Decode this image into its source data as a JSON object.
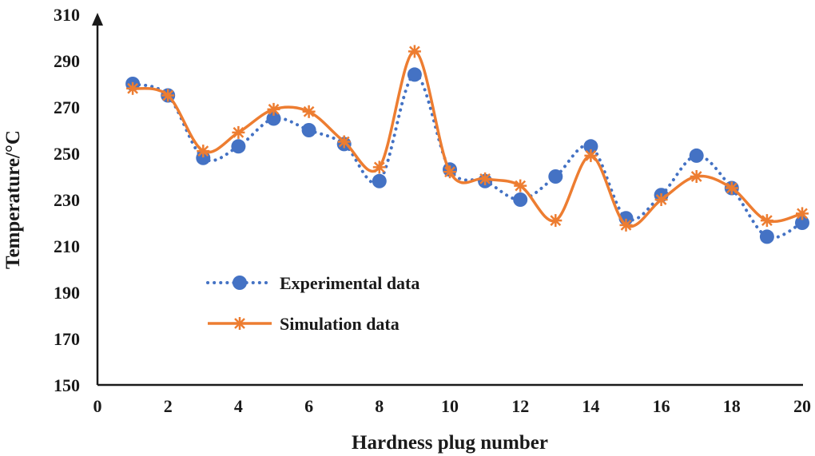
{
  "chart_data": {
    "type": "line",
    "title": "",
    "xlabel": "Hardness plug number",
    "ylabel": "Temperature/°C",
    "xlim": [
      0,
      20
    ],
    "ylim": [
      150,
      310
    ],
    "xticks": [
      0,
      2,
      4,
      6,
      8,
      10,
      12,
      14,
      16,
      18,
      20
    ],
    "yticks": [
      150,
      170,
      190,
      210,
      230,
      250,
      270,
      290,
      310
    ],
    "grid": false,
    "legend_position": "lower-left",
    "x": [
      1,
      2,
      3,
      4,
      5,
      6,
      7,
      8,
      9,
      10,
      11,
      12,
      13,
      14,
      15,
      16,
      17,
      18,
      19,
      20
    ],
    "series": [
      {
        "name": "Experimental data",
        "color": "#4472C4",
        "style": "dotted-smooth",
        "marker": "circle",
        "values": [
          280,
          275,
          248,
          253,
          265,
          260,
          254,
          238,
          284,
          243,
          238,
          230,
          240,
          253,
          222,
          232,
          249,
          235,
          214,
          220
        ]
      },
      {
        "name": "Simulation data",
        "color": "#ED7D31",
        "style": "solid-smooth",
        "marker": "asterisk",
        "values": [
          278,
          275,
          251,
          259,
          269,
          268,
          255,
          244,
          294,
          242,
          239,
          236,
          221,
          249,
          219,
          230,
          240,
          235,
          221,
          224
        ]
      }
    ]
  }
}
